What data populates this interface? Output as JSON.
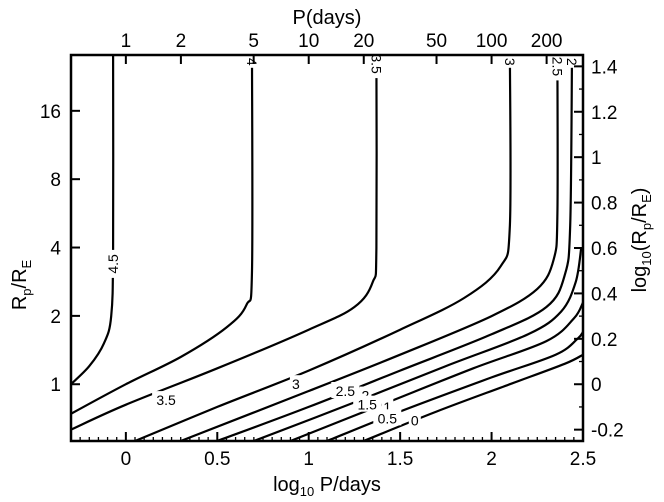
{
  "chart_data": {
    "type": "line",
    "title": "",
    "x_bottom": {
      "label_main": "log",
      "label_sub": "10",
      "label_tail": " P/days",
      "range": [
        -0.3,
        2.5
      ],
      "ticks": [
        0,
        0.5,
        1,
        1.5,
        2,
        2.5
      ],
      "tick_labels": [
        "0",
        "0.5",
        "1",
        "1.5",
        "2",
        "2.5"
      ]
    },
    "x_top": {
      "label": "P(days)",
      "ticks": [
        1,
        2,
        5,
        10,
        20,
        50,
        100,
        200
      ],
      "tick_labels": [
        "1",
        "2",
        "5",
        "10",
        "20",
        "50",
        "100",
        "200"
      ]
    },
    "y_left": {
      "label_main": "R",
      "label_sub1": "p",
      "label_mid": "/R",
      "label_sub2": "E",
      "ticks": [
        1,
        2,
        4,
        8,
        16
      ],
      "tick_labels": [
        "1",
        "2",
        "4",
        "8",
        "16"
      ]
    },
    "y_right": {
      "label_pre": "log",
      "label_sub1": "10",
      "label_mid": "(R",
      "label_sub2": "p",
      "label_mid2": "/R",
      "label_sub3": "E",
      "label_end": ")",
      "range": [
        -0.25,
        1.45
      ],
      "ticks": [
        -0.2,
        0,
        0.2,
        0.4,
        0.6,
        0.8,
        1,
        1.2,
        1.4
      ],
      "tick_labels": [
        "-0.2",
        "0",
        "0.2",
        "0.4",
        "0.6",
        "0.8",
        "1",
        "1.2",
        "1.4"
      ]
    },
    "contours": [
      {
        "level": "4.5",
        "points": [
          [
            -0.3,
            0.0
          ],
          [
            -0.2,
            0.08
          ],
          [
            -0.12,
            0.18
          ],
          [
            -0.08,
            0.3
          ],
          [
            -0.07,
            0.6
          ],
          [
            -0.07,
            1.45
          ]
        ]
      },
      {
        "level": "4",
        "points": [
          [
            -0.3,
            -0.13
          ],
          [
            0.0,
            0.0
          ],
          [
            0.3,
            0.12
          ],
          [
            0.55,
            0.25
          ],
          [
            0.66,
            0.35
          ],
          [
            0.69,
            0.5
          ],
          [
            0.69,
            1.45
          ]
        ]
      },
      {
        "level": "3.5",
        "points": [
          [
            -0.3,
            -0.2
          ],
          [
            0.0,
            -0.09
          ],
          [
            0.5,
            0.07
          ],
          [
            1.0,
            0.24
          ],
          [
            1.25,
            0.34
          ],
          [
            1.35,
            0.45
          ],
          [
            1.37,
            0.6
          ],
          [
            1.37,
            1.45
          ]
        ]
      },
      {
        "level": "3",
        "points": [
          [
            0.05,
            -0.25
          ],
          [
            0.5,
            -0.1
          ],
          [
            1.0,
            0.06
          ],
          [
            1.5,
            0.24
          ],
          [
            1.85,
            0.38
          ],
          [
            2.05,
            0.52
          ],
          [
            2.1,
            0.7
          ],
          [
            2.1,
            1.45
          ]
        ]
      },
      {
        "level": "2.5",
        "points": [
          [
            0.3,
            -0.25
          ],
          [
            1.0,
            -0.03
          ],
          [
            1.5,
            0.13
          ],
          [
            2.0,
            0.3
          ],
          [
            2.25,
            0.42
          ],
          [
            2.34,
            0.55
          ],
          [
            2.36,
            0.75
          ],
          [
            2.36,
            1.45
          ]
        ]
      },
      {
        "level": "2",
        "points": [
          [
            0.5,
            -0.25
          ],
          [
            1.0,
            -0.1
          ],
          [
            1.5,
            0.06
          ],
          [
            2.0,
            0.22
          ],
          [
            2.3,
            0.34
          ],
          [
            2.4,
            0.48
          ],
          [
            2.43,
            0.7
          ],
          [
            2.44,
            1.45
          ]
        ]
      },
      {
        "level": "1.5",
        "points": [
          [
            0.7,
            -0.25
          ],
          [
            1.25,
            -0.08
          ],
          [
            1.75,
            0.08
          ],
          [
            2.2,
            0.22
          ],
          [
            2.38,
            0.32
          ],
          [
            2.46,
            0.45
          ],
          [
            2.49,
            0.6
          ]
        ]
      },
      {
        "level": "1",
        "points": [
          [
            0.9,
            -0.25
          ],
          [
            1.4,
            -0.09
          ],
          [
            1.9,
            0.07
          ],
          [
            2.3,
            0.19
          ],
          [
            2.45,
            0.29
          ],
          [
            2.5,
            0.36
          ]
        ]
      },
      {
        "level": "0.5",
        "points": [
          [
            1.1,
            -0.25
          ],
          [
            1.5,
            -0.12
          ],
          [
            2.0,
            0.03
          ],
          [
            2.35,
            0.13
          ],
          [
            2.47,
            0.2
          ],
          [
            2.5,
            0.23
          ]
        ]
      },
      {
        "level": "0",
        "points": [
          [
            1.3,
            -0.25
          ],
          [
            1.7,
            -0.12
          ],
          [
            2.1,
            0.0
          ],
          [
            2.4,
            0.09
          ],
          [
            2.5,
            0.13
          ]
        ]
      }
    ],
    "contour_labels": [
      {
        "text": "4.5",
        "x": -0.07,
        "y": 0.53,
        "rotate": -90
      },
      {
        "text": "4",
        "x": 0.69,
        "y": 1.42,
        "rotate": 90
      },
      {
        "text": "3.5",
        "x": 1.37,
        "y": 1.41,
        "rotate": 90
      },
      {
        "text": "3",
        "x": 2.1,
        "y": 1.42,
        "rotate": 90
      },
      {
        "text": "2.5",
        "x": 2.36,
        "y": 1.4,
        "rotate": 90
      },
      {
        "text": "2",
        "x": 2.44,
        "y": 1.42,
        "rotate": 90
      },
      {
        "text": "3.5",
        "x": 0.22,
        "y": -0.07,
        "rotate": 0
      },
      {
        "text": "3",
        "x": 0.93,
        "y": 0.0,
        "rotate": 0
      },
      {
        "text": "2.5",
        "x": 1.2,
        "y": -0.03,
        "rotate": 0
      },
      {
        "text": "2",
        "x": 1.31,
        "y": -0.05,
        "rotate": 0
      },
      {
        "text": "1.5",
        "x": 1.32,
        "y": -0.09,
        "rotate": 0
      },
      {
        "text": "1",
        "x": 1.43,
        "y": -0.1,
        "rotate": 0
      },
      {
        "text": "0.5",
        "x": 1.43,
        "y": -0.15,
        "rotate": 0
      },
      {
        "text": "0",
        "x": 1.58,
        "y": -0.16,
        "rotate": 0
      }
    ]
  }
}
